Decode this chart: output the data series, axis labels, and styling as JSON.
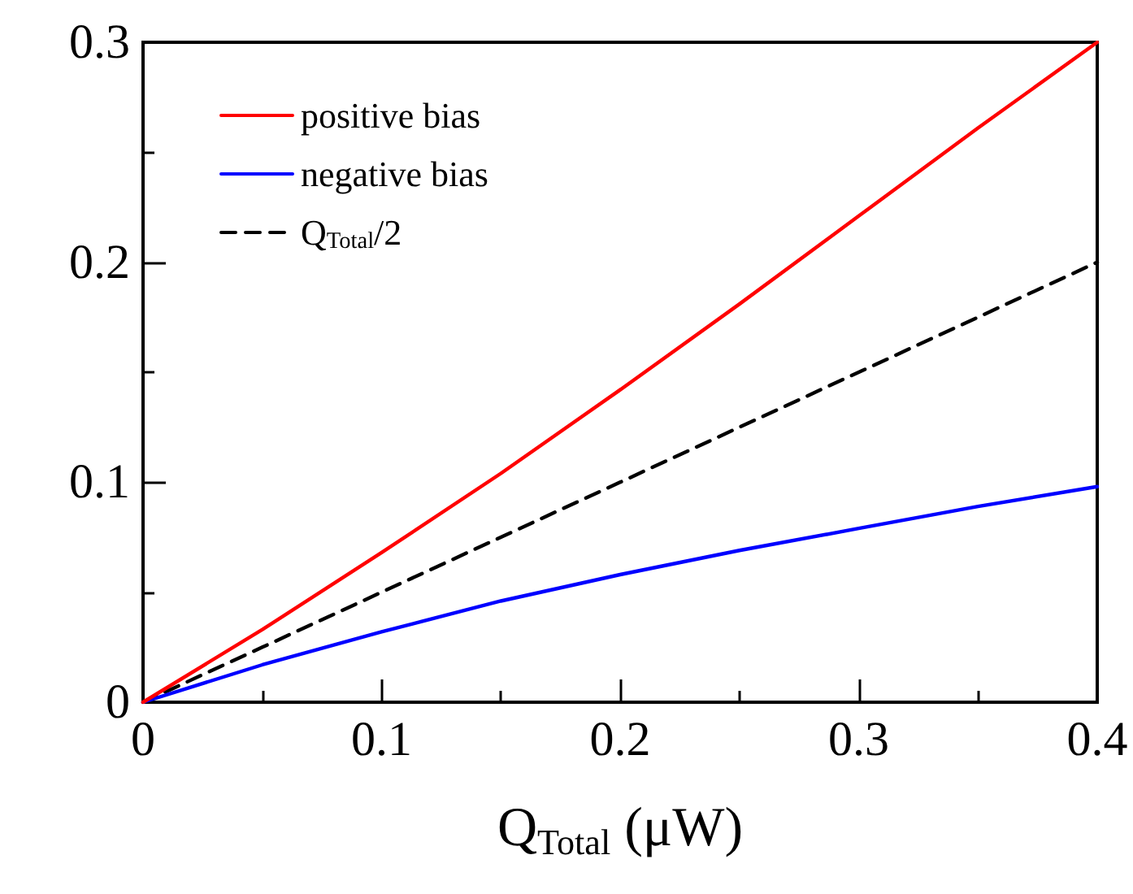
{
  "chart_data": {
    "type": "line",
    "xlabel": "Q$_{Total}$ (μW)",
    "x": [
      0,
      0.05,
      0.1,
      0.15,
      0.2,
      0.25,
      0.3,
      0.35,
      0.4
    ],
    "series": [
      {
        "name": "positive bias",
        "color": "#ff0000",
        "values": [
          0,
          0.033,
          0.068,
          0.104,
          0.142,
          0.181,
          0.221,
          0.261,
          0.3
        ]
      },
      {
        "name": "negative bias",
        "color": "#0000ff",
        "values": [
          0,
          0.017,
          0.032,
          0.046,
          0.058,
          0.069,
          0.079,
          0.089,
          0.098
        ]
      },
      {
        "name": "Q$_{Total}$/2",
        "color": "#000000",
        "line_style": "dashed",
        "values": [
          0,
          0.025,
          0.05,
          0.075,
          0.1,
          0.125,
          0.15,
          0.175,
          0.2
        ]
      }
    ],
    "xlim": [
      0,
      0.4
    ],
    "ylim": [
      0,
      0.3
    ],
    "xticks": [
      0,
      0.1,
      0.2,
      0.3,
      0.4
    ],
    "yticks": [
      0,
      0.1,
      0.2,
      0.3
    ],
    "grid": false,
    "legend": "top left",
    "marker": "none"
  }
}
